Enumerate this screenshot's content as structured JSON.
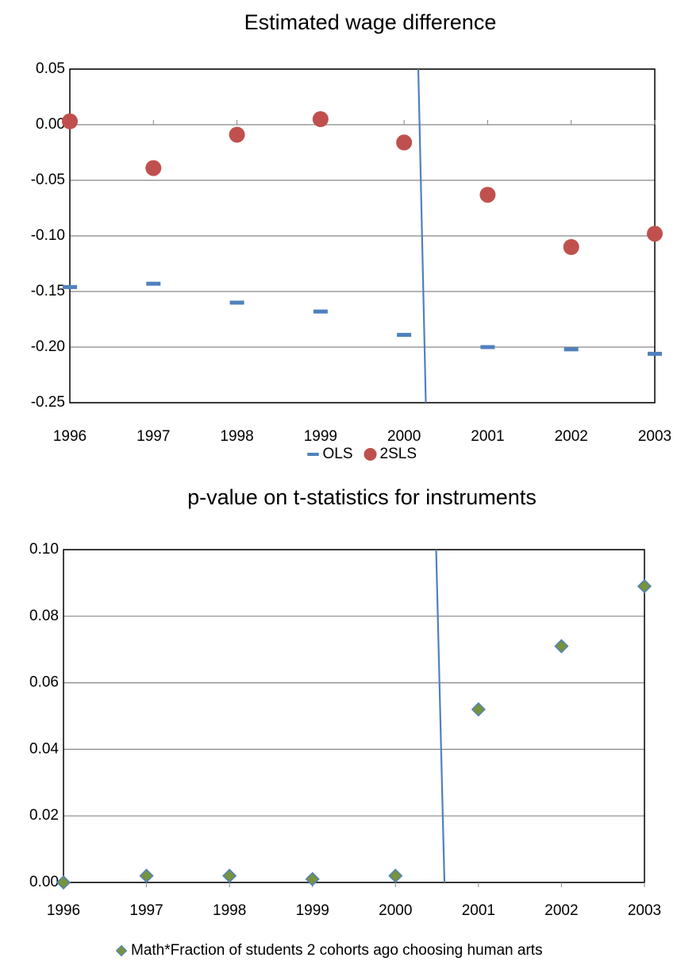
{
  "chart_data": [
    {
      "type": "scatter",
      "title": "Estimated wage difference",
      "x": [
        1996,
        1997,
        1998,
        1999,
        2000,
        2001,
        2002,
        2003
      ],
      "xlim": [
        1996,
        2003
      ],
      "xticks": [
        1996,
        1997,
        1998,
        1999,
        2000,
        2001,
        2002,
        2003
      ],
      "ylim": [
        -0.25,
        0.05
      ],
      "yticks": [
        -0.25,
        {
          "value": -0.2,
          "label": "-0.20"
        },
        -0.15,
        {
          "value": -0.1,
          "label": "-0.10"
        },
        -0.05,
        {
          "value": 0,
          "label": "0.00"
        },
        0.05
      ],
      "grid": true,
      "legend": "bottom",
      "series": [
        {
          "name": "OLS",
          "color": "#4f81bd",
          "marker": "dash",
          "values": [
            -0.146,
            -0.143,
            -0.16,
            -0.168,
            -0.189,
            -0.2,
            -0.202,
            -0.206
          ]
        },
        {
          "name": "2SLS",
          "color": "#c0504d",
          "marker": "circle",
          "values": [
            0.003,
            -0.039,
            -0.009,
            0.005,
            -0.016,
            -0.063,
            -0.11,
            -0.098
          ]
        }
      ],
      "lines": [
        {
          "color": "#4f81bd",
          "x": [
            2000.17,
            2000.26
          ],
          "y": [
            0.05,
            -0.25
          ]
        }
      ]
    },
    {
      "type": "scatter",
      "title": "p-value on t-statistics for instruments",
      "x": [
        1996,
        1997,
        1998,
        1999,
        2000,
        2001,
        2002,
        2003
      ],
      "xlim": [
        1996,
        2003
      ],
      "xticks": [
        1996,
        1997,
        1998,
        1999,
        2000,
        2001,
        2002,
        2003
      ],
      "ylim": [
        0,
        0.1
      ],
      "yticks": [
        {
          "value": 0,
          "label": "0.00"
        },
        0.02,
        0.04,
        0.06,
        0.08,
        {
          "value": 0.1,
          "label": "0.10"
        }
      ],
      "grid": true,
      "legend": "bottom",
      "series": [
        {
          "name": "Math*Fraction of students 2 cohorts ago choosing human arts",
          "color": "#77933c",
          "marker": "diamond",
          "values": [
            0,
            0.002,
            0.002,
            0.001,
            0.002,
            0.052,
            0.071,
            0.089
          ]
        }
      ],
      "lines": [
        {
          "color": "#4f81bd",
          "x": [
            2000.49,
            2000.59
          ],
          "y": [
            0.1,
            0
          ]
        }
      ]
    }
  ]
}
